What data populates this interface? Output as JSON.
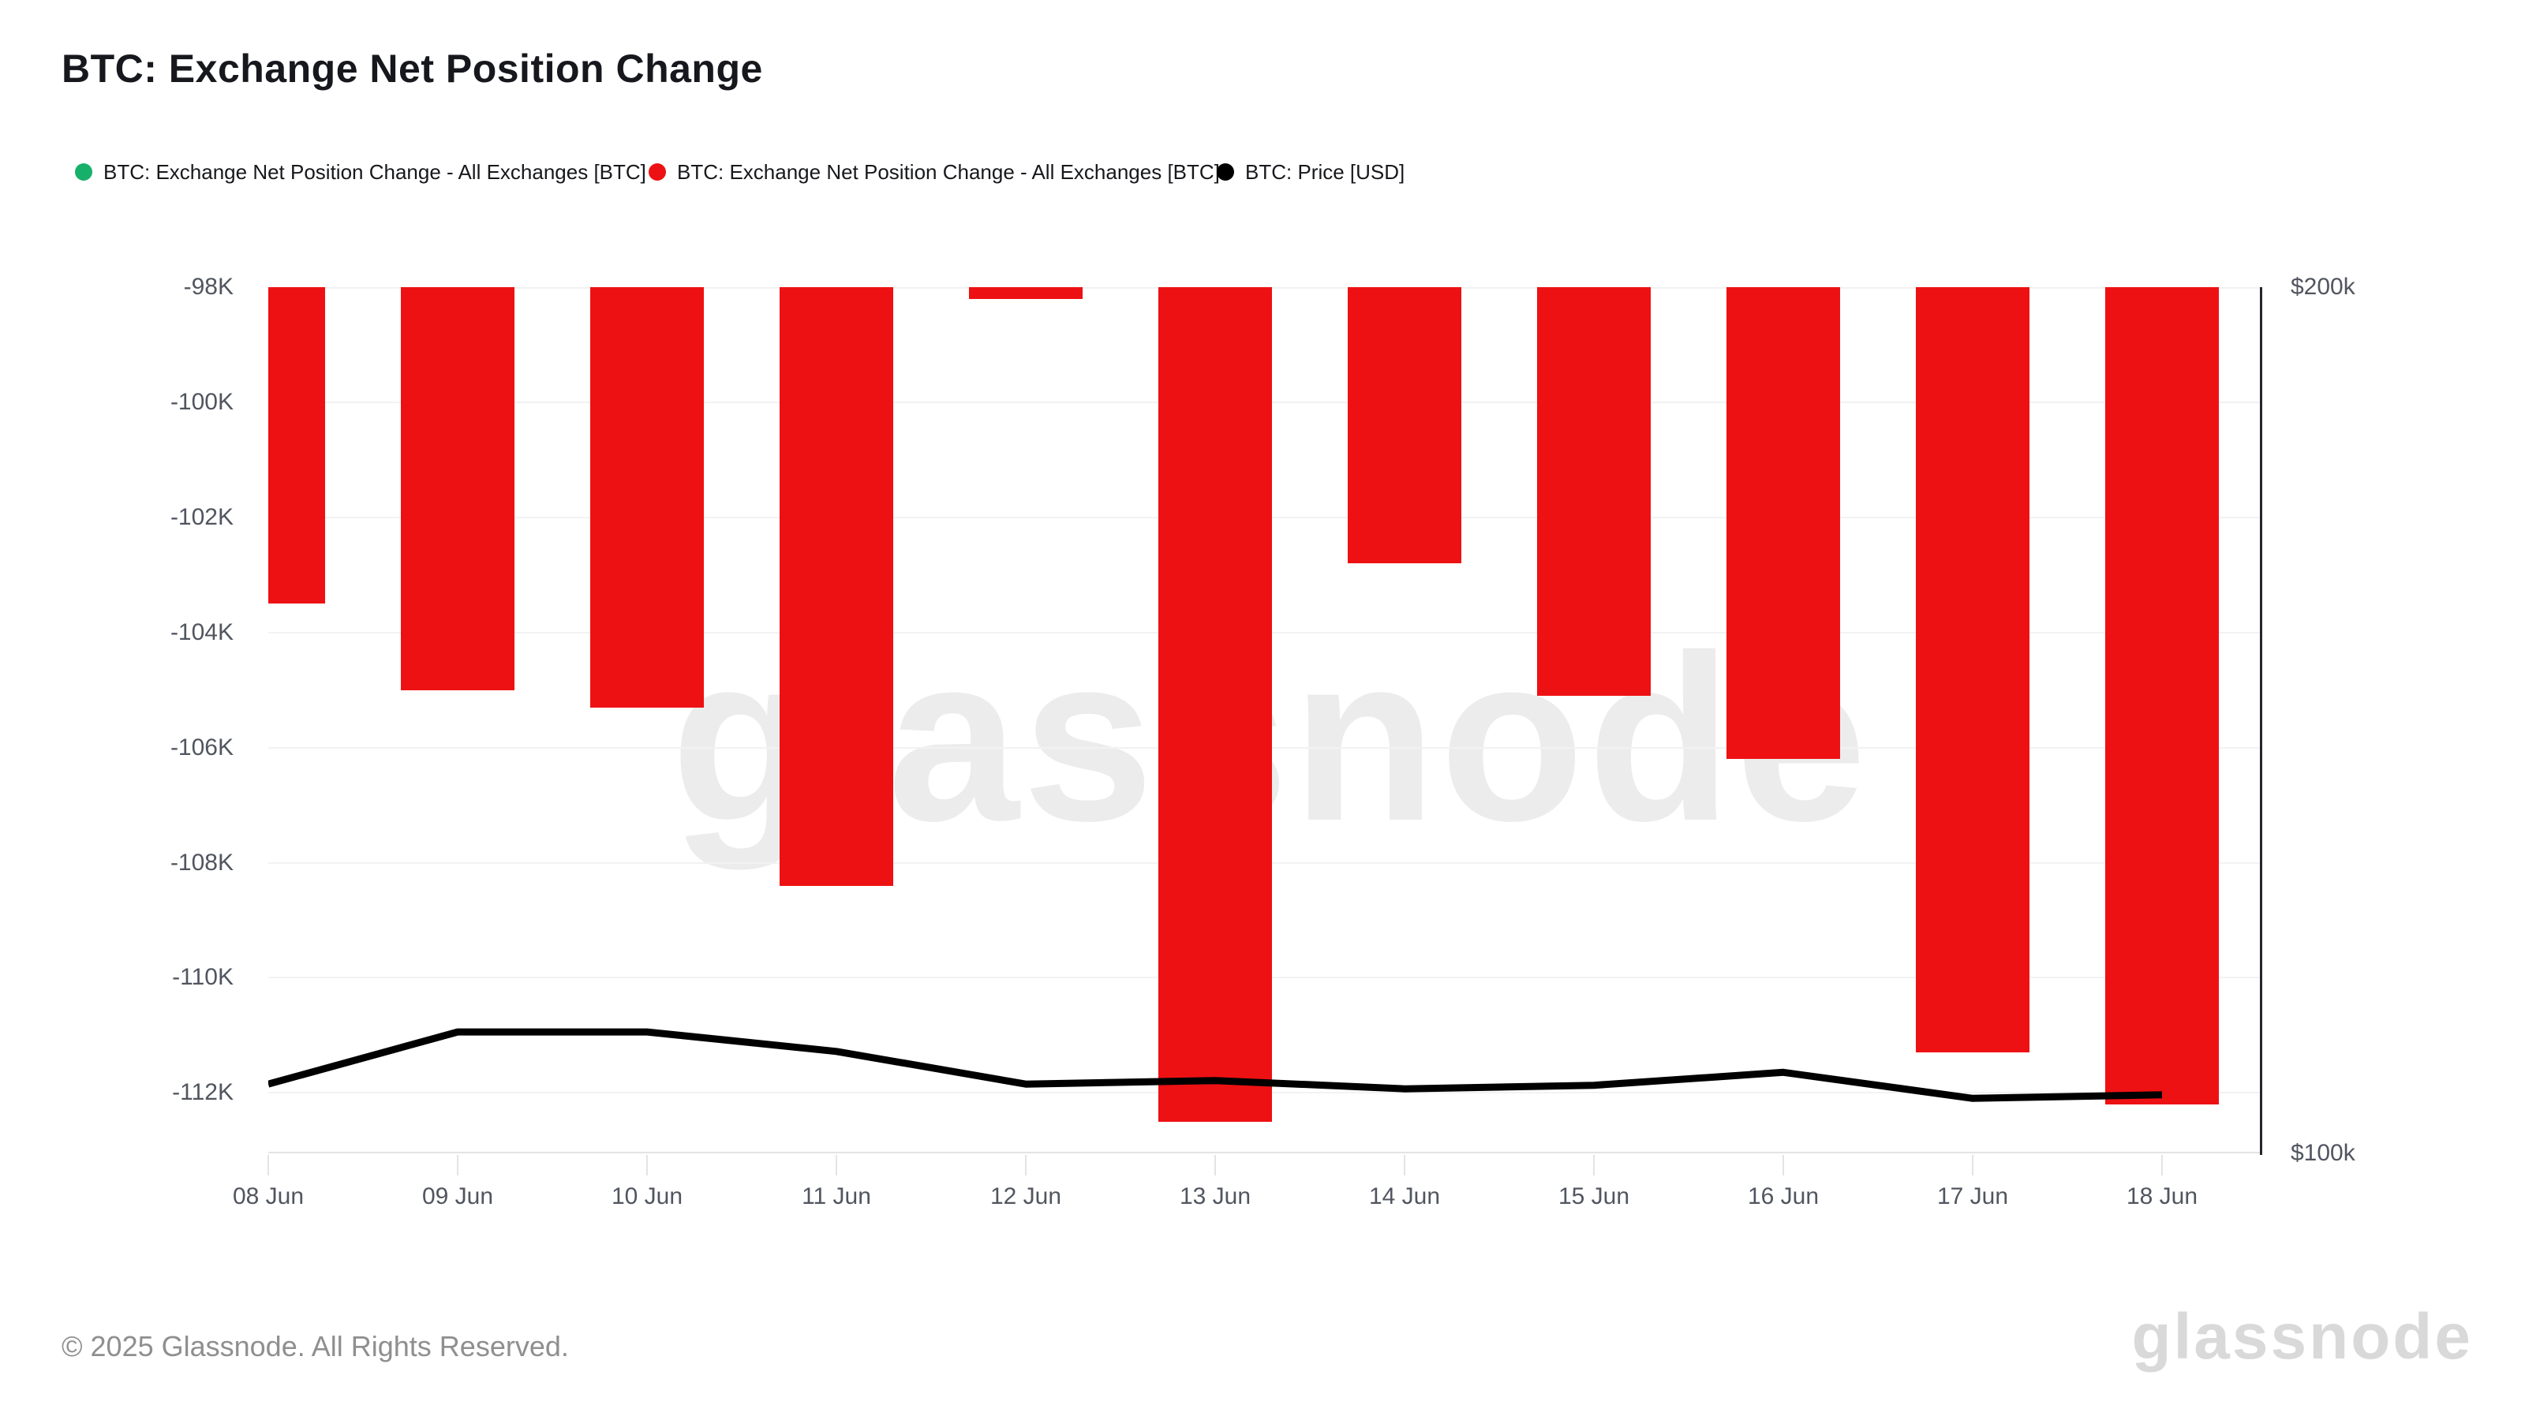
{
  "header": {
    "title": "BTC: Exchange Net Position Change"
  },
  "legend": {
    "items": [
      {
        "label": "BTC: Exchange Net Position Change - All Exchanges [BTC]",
        "dot_color": "#17b06b",
        "icon": "green-dot-icon"
      },
      {
        "label": "BTC: Exchange Net Position Change - All Exchanges [BTC]",
        "dot_color": "#ed1113",
        "icon": "red-dot-icon"
      },
      {
        "label": "BTC: Price [USD]",
        "dot_color": "#000000",
        "icon": "black-dot-icon"
      }
    ]
  },
  "chart_data": {
    "type": "bar",
    "categories": [
      "08 Jun",
      "09 Jun",
      "10 Jun",
      "11 Jun",
      "12 Jun",
      "13 Jun",
      "14 Jun",
      "15 Jun",
      "16 Jun",
      "17 Jun",
      "18 Jun"
    ],
    "series": [
      {
        "name": "BTC: Exchange Net Position Change - All Exchanges [BTC]",
        "type": "bar",
        "axis": "left",
        "color": "#ed1113",
        "values": [
          -103500,
          -105000,
          -105300,
          -108400,
          -98200,
          -112500,
          -102800,
          -105100,
          -106200,
          -111300,
          -112200
        ]
      },
      {
        "name": "BTC: Price [USD]",
        "type": "line",
        "axis": "right",
        "color": "#000000",
        "values": [
          105700,
          110200,
          110200,
          108500,
          105700,
          106000,
          105300,
          105600,
          106700,
          104500,
          104800
        ]
      }
    ],
    "left_axis": {
      "tick_labels": [
        "-98K",
        "-100K",
        "-102K",
        "-104K",
        "-106K",
        "-108K",
        "-110K",
        "-112K"
      ],
      "tick_values": [
        -98000,
        -100000,
        -102000,
        -104000,
        -106000,
        -108000,
        -110000,
        -112000
      ],
      "range_top": -98000,
      "range_bottom": -113050,
      "grid": true
    },
    "right_axis": {
      "tick_labels": [
        "$200k",
        "$100k"
      ],
      "tick_values": [
        200000,
        100000
      ],
      "range_top": 200000,
      "range_bottom": 100000,
      "scale": "log",
      "grid": false
    },
    "legend_position": "top-left",
    "title": "BTC: Exchange Net Position Change"
  },
  "branding": {
    "watermark_text": "glassnode",
    "logo_text": "glassnode"
  },
  "footer": {
    "copyright": "© 2025 Glassnode. All Rights Reserved."
  }
}
